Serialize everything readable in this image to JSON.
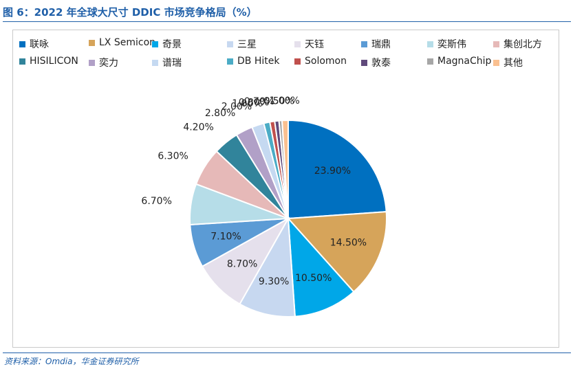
{
  "figure_title": "图 6：2022 年全球大尺寸 DDIC 市场竞争格局（%）",
  "source_note": "资料来源：Omdia，华金证券研究所",
  "chart_data": {
    "type": "pie",
    "legend_position": "top",
    "slices": [
      {
        "name": "联咏",
        "value": 23.9,
        "label": "23.90%",
        "color": "#0070c0"
      },
      {
        "name": "LX Semicon",
        "value": 14.5,
        "label": "14.50%",
        "color": "#d6a45a"
      },
      {
        "name": "奇景",
        "value": 10.5,
        "label": "10.50%",
        "color": "#00a7e8"
      },
      {
        "name": "三星",
        "value": 9.3,
        "label": "9.30%",
        "color": "#c7d8f0"
      },
      {
        "name": "天钰",
        "value": 8.7,
        "label": "8.70%",
        "color": "#e5e0ec"
      },
      {
        "name": "瑞鼎",
        "value": 7.1,
        "label": "7.10%",
        "color": "#5b9bd5"
      },
      {
        "name": "奕斯伟",
        "value": 6.7,
        "label": "6.70%",
        "color": "#b6dde8"
      },
      {
        "name": "集创北方",
        "value": 6.3,
        "label": "6.30%",
        "color": "#e6b9b8"
      },
      {
        "name": "HISILICON",
        "value": 4.2,
        "label": "4.20%",
        "color": "#31849b"
      },
      {
        "name": "奕力",
        "value": 2.8,
        "label": "2.80%",
        "color": "#b1a0c7"
      },
      {
        "name": "谱瑞",
        "value": 2.0,
        "label": "2.00%",
        "color": "#c5d9f1"
      },
      {
        "name": "DB Hitek",
        "value": 1.0,
        "label": "1.00%",
        "color": "#4bacc6"
      },
      {
        "name": "Solomon",
        "value": 0.8,
        "label": "0.80%",
        "color": "#c0504d"
      },
      {
        "name": "敦泰",
        "value": 0.7,
        "label": "0.70%",
        "color": "#604a7b"
      },
      {
        "name": "MagnaChip",
        "value": 0.5,
        "label": "0.50%",
        "color": "#a6a6a6"
      },
      {
        "name": "其他",
        "value": 1.0,
        "label": "1.00%",
        "color": "#fac090"
      }
    ]
  }
}
